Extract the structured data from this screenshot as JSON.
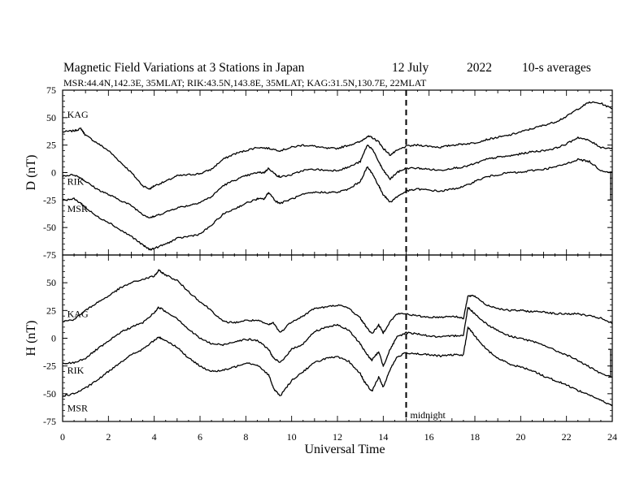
{
  "chart_data": {
    "type": "line",
    "title": "Magnetic Field Variations at 3 Stations in Japan",
    "date": "12 July",
    "year": "2022",
    "averaging": "10-s averages",
    "stations_line": "MSR:44.4N,142.3E, 35MLAT;  RIK:43.5N,143.8E, 35MLAT;  KAG:31.5N,130.7E, 22MLAT",
    "xlabel": "Universal Time",
    "xlim": [
      0,
      24
    ],
    "x_ticks": [
      0,
      2,
      4,
      6,
      8,
      10,
      12,
      14,
      16,
      18,
      20,
      22,
      24
    ],
    "marker": {
      "x": 15,
      "label": "midnight"
    },
    "panels": [
      {
        "ylabel": "D (nT)",
        "ylim": [
          -75,
          75
        ],
        "y_ticks": [
          75,
          50,
          25,
          0,
          -25,
          -50,
          -75
        ],
        "series": [
          {
            "name": "KAG",
            "x": [
              0,
              0.5,
              0.8,
              1,
              1.5,
              2,
              2.5,
              3,
              3.5,
              3.8,
              4,
              4.5,
              5,
              5.5,
              6,
              6.5,
              7,
              7.5,
              8,
              8.5,
              9,
              9.5,
              10,
              10.5,
              11,
              11.5,
              12,
              12.5,
              13,
              13.3,
              13.5,
              13.8,
              14,
              14.3,
              14.6,
              15,
              15.5,
              16,
              16.5,
              17,
              17.5,
              18,
              18.5,
              19,
              19.5,
              20,
              20.5,
              21,
              21.5,
              22,
              22.5,
              23,
              23.5,
              24
            ],
            "y": [
              37,
              38,
              40,
              34,
              27,
              20,
              10,
              0,
              -12,
              -15,
              -12,
              -8,
              -3,
              -2,
              -1,
              3,
              12,
              17,
              20,
              23,
              22,
              20,
              23,
              25,
              24,
              22,
              22,
              25,
              28,
              33,
              32,
              28,
              22,
              16,
              20,
              24,
              25,
              24,
              23,
              25,
              26,
              27,
              30,
              32,
              34,
              37,
              40,
              43,
              46,
              51,
              58,
              64,
              63,
              58
            ]
          },
          {
            "name": "RIK",
            "x": [
              0,
              0.5,
              0.8,
              1,
              1.5,
              2,
              2.5,
              3,
              3.5,
              3.8,
              4,
              4.5,
              5,
              5.5,
              6,
              6.5,
              7,
              7.5,
              8,
              8.5,
              8.8,
              9,
              9.3,
              9.5,
              10,
              10.5,
              11,
              11.5,
              12,
              12.5,
              13,
              13.3,
              13.5,
              13.8,
              14,
              14.3,
              14.6,
              15,
              15.5,
              16,
              16.5,
              17,
              17.5,
              18,
              18.5,
              19,
              19.5,
              20,
              20.5,
              21,
              21.5,
              22,
              22.5,
              23,
              23.5,
              24
            ],
            "y": [
              -3,
              -2,
              -5,
              -8,
              -15,
              -20,
              -25,
              -30,
              -38,
              -41,
              -40,
              -36,
              -32,
              -30,
              -27,
              -22,
              -12,
              -7,
              -3,
              0,
              0,
              4,
              -2,
              -4,
              -2,
              2,
              3,
              2,
              2,
              5,
              10,
              25,
              22,
              10,
              2,
              -6,
              0,
              4,
              4,
              3,
              2,
              4,
              5,
              8,
              12,
              14,
              15,
              17,
              19,
              20,
              22,
              26,
              32,
              29,
              23,
              22
            ]
          },
          {
            "name": "MSR",
            "x": [
              0,
              0.5,
              0.8,
              1,
              1.5,
              2,
              2.5,
              3,
              3.5,
              3.8,
              4,
              4.5,
              5,
              5.5,
              6,
              6.5,
              7,
              7.5,
              8,
              8.5,
              8.8,
              9,
              9.3,
              9.5,
              10,
              10.5,
              11,
              11.5,
              12,
              12.5,
              13,
              13.3,
              13.5,
              13.8,
              14,
              14.3,
              14.6,
              15,
              15.5,
              16,
              16.5,
              17,
              17.5,
              18,
              18.5,
              19,
              19.5,
              20,
              20.5,
              21,
              21.5,
              22,
              22.5,
              23,
              23.5,
              24
            ],
            "y": [
              -25,
              -24,
              -28,
              -32,
              -40,
              -45,
              -52,
              -58,
              -66,
              -70,
              -69,
              -65,
              -60,
              -58,
              -56,
              -48,
              -38,
              -33,
              -28,
              -24,
              -24,
              -18,
              -26,
              -28,
              -24,
              -20,
              -18,
              -18,
              -18,
              -15,
              -8,
              5,
              0,
              -12,
              -20,
              -27,
              -22,
              -17,
              -15,
              -16,
              -17,
              -15,
              -13,
              -8,
              -4,
              -2,
              0,
              0,
              2,
              3,
              5,
              8,
              12,
              10,
              2,
              0
            ]
          }
        ],
        "annotations": [
          {
            "text": "KAG",
            "x": 0.2,
            "y": 50
          },
          {
            "text": "RIK",
            "x": 0.2,
            "y": -11
          },
          {
            "text": "MSR",
            "x": 0.2,
            "y": -36
          }
        ]
      },
      {
        "ylabel": "H (nT)",
        "ylim": [
          -75,
          75
        ],
        "y_ticks": [
          75,
          50,
          25,
          0,
          -25,
          -50,
          -75
        ],
        "series": [
          {
            "name": "KAG",
            "x": [
              0,
              0.5,
              1,
              1.5,
              2,
              2.5,
              3,
              3.5,
              4,
              4.2,
              4.5,
              5,
              5.5,
              6,
              6.5,
              7,
              7.5,
              8,
              8.5,
              9,
              9.2,
              9.5,
              10,
              10.5,
              11,
              11.5,
              12,
              12.5,
              13,
              13.2,
              13.5,
              13.8,
              14,
              14.3,
              14.6,
              15,
              15.5,
              16,
              16.5,
              17,
              17.5,
              17.7,
              18,
              18.5,
              19,
              19.5,
              20,
              20.5,
              21,
              21.5,
              22,
              22.5,
              23,
              23.5,
              24
            ],
            "y": [
              15,
              17,
              25,
              32,
              38,
              45,
              50,
              53,
              56,
              61,
              57,
              52,
              42,
              33,
              25,
              15,
              14,
              16,
              16,
              12,
              14,
              5,
              15,
              20,
              27,
              28,
              30,
              27,
              18,
              12,
              4,
              12,
              5,
              15,
              22,
              22,
              20,
              19,
              19,
              20,
              18,
              38,
              38,
              30,
              27,
              25,
              25,
              24,
              24,
              22,
              22,
              22,
              20,
              18,
              13
            ]
          },
          {
            "name": "RIK",
            "x": [
              0,
              0.5,
              1,
              1.5,
              2,
              2.5,
              3,
              3.5,
              4,
              4.2,
              4.5,
              5,
              5.5,
              6,
              6.5,
              7,
              7.5,
              8,
              8.5,
              9,
              9.2,
              9.5,
              10,
              10.5,
              11,
              11.5,
              12,
              12.5,
              13,
              13.2,
              13.5,
              13.8,
              14,
              14.3,
              14.6,
              15,
              15.5,
              16,
              16.5,
              17,
              17.5,
              17.7,
              18,
              18.5,
              19,
              19.5,
              20,
              20.5,
              21,
              21.5,
              22,
              22.5,
              23,
              23.5,
              24
            ],
            "y": [
              -23,
              -22,
              -18,
              -10,
              -3,
              5,
              10,
              14,
              23,
              28,
              24,
              18,
              8,
              0,
              -5,
              -6,
              -3,
              -1,
              -2,
              -10,
              -18,
              -22,
              -10,
              -5,
              6,
              10,
              12,
              7,
              -5,
              -12,
              -20,
              -12,
              -25,
              -10,
              1,
              5,
              4,
              2,
              1,
              2,
              3,
              28,
              22,
              13,
              7,
              2,
              0,
              -3,
              -6,
              -11,
              -15,
              -20,
              -26,
              -32,
              -35
            ]
          },
          {
            "name": "MSR",
            "x": [
              0,
              0.5,
              1,
              1.5,
              2,
              2.5,
              3,
              3.5,
              4,
              4.2,
              4.5,
              5,
              5.5,
              6,
              6.5,
              7,
              7.5,
              8,
              8.5,
              9,
              9.2,
              9.5,
              10,
              10.5,
              11,
              11.5,
              12,
              12.5,
              13,
              13.2,
              13.5,
              13.8,
              14,
              14.3,
              14.6,
              15,
              15.5,
              16,
              16.5,
              17,
              17.5,
              17.7,
              18,
              18.5,
              19,
              19.5,
              20,
              20.5,
              21,
              21.5,
              22,
              22.5,
              23,
              23.5,
              24
            ],
            "y": [
              -52,
              -50,
              -45,
              -38,
              -30,
              -22,
              -15,
              -10,
              -2,
              1,
              -2,
              -8,
              -18,
              -25,
              -30,
              -29,
              -26,
              -22,
              -24,
              -33,
              -45,
              -52,
              -38,
              -30,
              -22,
              -18,
              -17,
              -21,
              -32,
              -40,
              -48,
              -35,
              -44,
              -28,
              -17,
              -13,
              -14,
              -15,
              -16,
              -15,
              -15,
              10,
              2,
              -10,
              -18,
              -23,
              -26,
              -29,
              -34,
              -38,
              -42,
              -47,
              -51,
              -56,
              -61
            ]
          }
        ],
        "annotations": [
          {
            "text": "KAG",
            "x": 0.2,
            "y": 19
          },
          {
            "text": "RIK",
            "x": 0.2,
            "y": -32
          },
          {
            "text": "MSR",
            "x": 0.2,
            "y": -66
          }
        ]
      }
    ]
  }
}
